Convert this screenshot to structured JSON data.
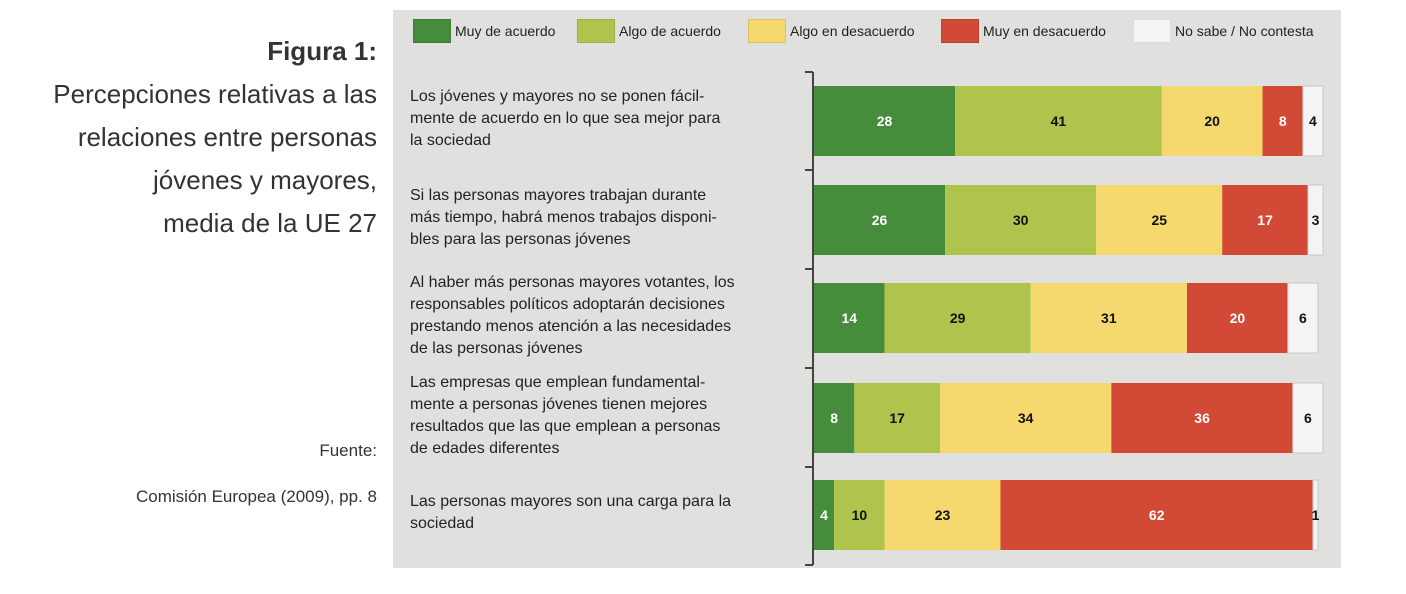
{
  "title": {
    "figure": "Figura 1:",
    "lines": [
      "Percepciones relativas a las",
      "relaciones entre personas",
      "jóvenes y mayores,",
      "media de la  UE 27"
    ]
  },
  "source": {
    "label": "Fuente:",
    "text": "Comisión Europea (2009), pp. 8"
  },
  "chart_data": {
    "type": "bar",
    "orientation": "horizontal",
    "stacked": true,
    "legend_position": "top",
    "categories": [
      "Los jóvenes y mayores no se ponen fácil- mente de acuerdo en lo que sea mejor para la sociedad",
      "Si las personas mayores trabajan durante más tiempo, habrá menos trabajos disponi- bles para las personas jóvenes",
      "Al haber más personas mayores votantes, los responsables políticos adoptarán decisiones prestando menos atención a las necesidades de las personas jóvenes",
      "Las empresas que emplean fundamental- mente a personas jóvenes tienen mejores resultados que las que emplean a personas de edades diferentes",
      "Las personas mayores son una carga para la sociedad"
    ],
    "series": [
      {
        "name": "Muy de acuerdo",
        "color": "#458c3b",
        "text_color": "#ffffff",
        "values": [
          28,
          26,
          14,
          8,
          4
        ]
      },
      {
        "name": "Algo de acuerdo",
        "color": "#aec44c",
        "text_color": "#111111",
        "values": [
          41,
          30,
          29,
          17,
          10
        ]
      },
      {
        "name": "Algo en desacuerdo",
        "color": "#f5d96e",
        "text_color": "#111111",
        "values": [
          20,
          25,
          31,
          34,
          23
        ]
      },
      {
        "name": "Muy en desacuerdo",
        "color": "#d24935",
        "text_color": "#ffffff",
        "values": [
          8,
          17,
          20,
          36,
          62
        ]
      },
      {
        "name": "No sabe / No contesta",
        "color": "#f4f4f4",
        "text_color": "#111111",
        "values": [
          4,
          3,
          6,
          6,
          1
        ]
      }
    ]
  }
}
